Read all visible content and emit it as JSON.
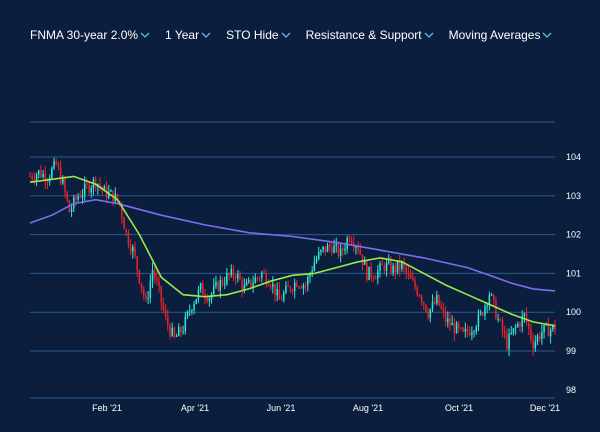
{
  "toolbar": {
    "items": [
      {
        "label": "FNMA 30-year 2.0%",
        "icon": "chevron-down-icon"
      },
      {
        "label": "1 Year",
        "icon": "chevron-down-icon"
      },
      {
        "label": "STO Hide",
        "icon": "chevron-down-icon"
      },
      {
        "label": "Resistance & Support",
        "icon": "chevron-down-icon"
      },
      {
        "label": "Moving Averages",
        "icon": "chevron-down-icon"
      }
    ],
    "chevron_color": "#5fb8e8"
  },
  "colors": {
    "background": "#0b1e3d",
    "grid": "#2b5a92",
    "up": "#2ee6d6",
    "down": "#e8232a",
    "ma_short": "#9be84a",
    "ma_long": "#7b6ff0"
  },
  "chart_data": {
    "type": "candlestick",
    "yticks": [
      "104",
      "103",
      "102",
      "101",
      "100",
      "99",
      "98"
    ],
    "ylim": [
      98,
      104.5
    ],
    "xticks": [
      "Feb '21",
      "Apr '21",
      "Jun '21",
      "Aug '21",
      "Oct '21",
      "Dec '21"
    ],
    "grid": true,
    "price_path": [
      [
        0,
        103.5
      ],
      [
        4,
        103.6
      ],
      [
        8,
        103.5
      ],
      [
        12,
        103.8
      ],
      [
        15,
        103.3
      ],
      [
        18,
        102.6
      ],
      [
        22,
        103.0
      ],
      [
        26,
        103.2
      ],
      [
        30,
        103.4
      ],
      [
        34,
        103.1
      ],
      [
        38,
        103.0
      ],
      [
        41,
        102.8
      ],
      [
        44,
        102.0
      ],
      [
        47,
        101.6
      ],
      [
        50,
        100.9
      ],
      [
        53,
        100.2
      ],
      [
        56,
        101.1
      ],
      [
        59,
        100.5
      ],
      [
        62,
        99.8
      ],
      [
        66,
        99.3
      ],
      [
        70,
        99.6
      ],
      [
        74,
        100.2
      ],
      [
        78,
        100.6
      ],
      [
        82,
        100.4
      ],
      [
        86,
        100.7
      ],
      [
        90,
        100.9
      ],
      [
        94,
        101.0
      ],
      [
        98,
        100.6
      ],
      [
        102,
        100.8
      ],
      [
        106,
        101.0
      ],
      [
        110,
        100.8
      ],
      [
        114,
        100.3
      ],
      [
        118,
        100.6
      ],
      [
        122,
        100.8
      ],
      [
        126,
        100.7
      ],
      [
        130,
        101.3
      ],
      [
        134,
        101.6
      ],
      [
        138,
        101.7
      ],
      [
        142,
        101.5
      ],
      [
        146,
        102.0
      ],
      [
        150,
        101.7
      ],
      [
        154,
        101.0
      ],
      [
        158,
        101.0
      ],
      [
        162,
        101.2
      ],
      [
        166,
        101.1
      ],
      [
        170,
        101.2
      ],
      [
        174,
        100.8
      ],
      [
        178,
        100.5
      ],
      [
        182,
        100.0
      ],
      [
        186,
        100.3
      ],
      [
        190,
        99.8
      ],
      [
        194,
        99.6
      ],
      [
        198,
        99.4
      ],
      [
        202,
        99.6
      ],
      [
        206,
        99.9
      ],
      [
        210,
        100.5
      ],
      [
        214,
        99.8
      ],
      [
        218,
        99.2
      ],
      [
        222,
        99.6
      ],
      [
        226,
        99.9
      ],
      [
        230,
        99.2
      ],
      [
        234,
        99.5
      ],
      [
        240,
        99.6
      ]
    ],
    "ma_short": [
      [
        0,
        103.35
      ],
      [
        20,
        103.5
      ],
      [
        30,
        103.3
      ],
      [
        40,
        102.9
      ],
      [
        50,
        102.0
      ],
      [
        60,
        100.9
      ],
      [
        70,
        100.45
      ],
      [
        80,
        100.4
      ],
      [
        90,
        100.45
      ],
      [
        100,
        100.6
      ],
      [
        110,
        100.8
      ],
      [
        120,
        100.95
      ],
      [
        130,
        101.0
      ],
      [
        140,
        101.15
      ],
      [
        150,
        101.3
      ],
      [
        160,
        101.4
      ],
      [
        170,
        101.3
      ],
      [
        180,
        101.0
      ],
      [
        190,
        100.7
      ],
      [
        200,
        100.45
      ],
      [
        210,
        100.2
      ],
      [
        220,
        99.95
      ],
      [
        230,
        99.75
      ],
      [
        240,
        99.65
      ]
    ],
    "ma_long": [
      [
        0,
        102.3
      ],
      [
        10,
        102.5
      ],
      [
        20,
        102.8
      ],
      [
        30,
        102.9
      ],
      [
        40,
        102.8
      ],
      [
        60,
        102.5
      ],
      [
        80,
        102.25
      ],
      [
        100,
        102.05
      ],
      [
        120,
        101.95
      ],
      [
        140,
        101.8
      ],
      [
        160,
        101.6
      ],
      [
        180,
        101.4
      ],
      [
        200,
        101.15
      ],
      [
        210,
        100.95
      ],
      [
        220,
        100.75
      ],
      [
        230,
        100.6
      ],
      [
        240,
        100.55
      ]
    ],
    "x_domain": [
      0,
      240
    ]
  }
}
